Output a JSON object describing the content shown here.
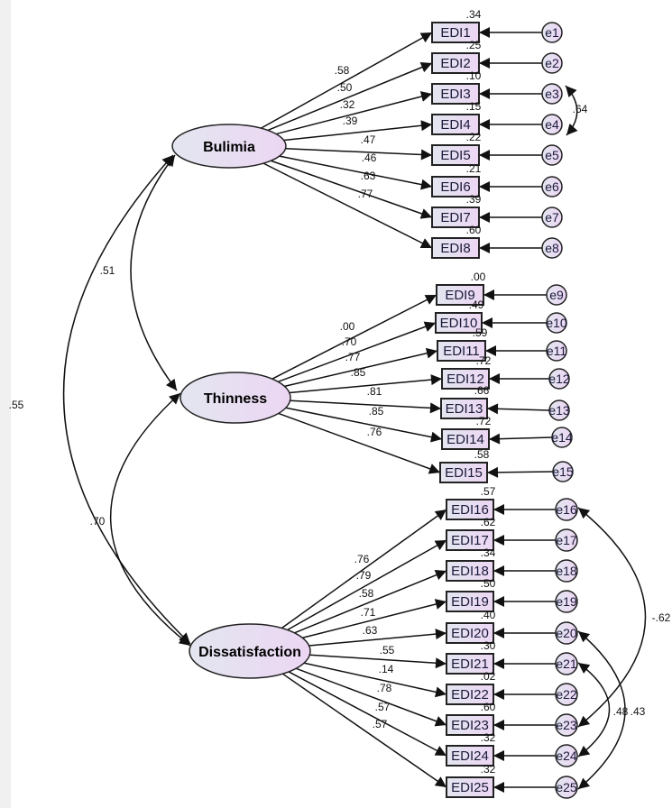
{
  "diagram": {
    "type": "sem-path-diagram",
    "colors": {
      "box_fill_start": "#e3e6f0",
      "box_fill_end": "#ecd6f3",
      "line": "#111111"
    },
    "latents": [
      {
        "name": "Bulimia"
      },
      {
        "name": "Thinness"
      },
      {
        "name": "Dissatisfaction"
      }
    ],
    "indicators": [
      {
        "label": "EDI1",
        "factor": "Bulimia",
        "loading": ".58",
        "r2": ".34",
        "error": "e1"
      },
      {
        "label": "EDI2",
        "factor": "Bulimia",
        "loading": ".50",
        "r2": ".25",
        "error": "e2"
      },
      {
        "label": "EDI3",
        "factor": "Bulimia",
        "loading": ".32",
        "r2": ".10",
        "error": "e3"
      },
      {
        "label": "EDI4",
        "factor": "Bulimia",
        "loading": ".39",
        "r2": ".15",
        "error": "e4"
      },
      {
        "label": "EDI5",
        "factor": "Bulimia",
        "loading": ".47",
        "r2": ".22",
        "error": "e5"
      },
      {
        "label": "EDI6",
        "factor": "Bulimia",
        "loading": ".46",
        "r2": ".21",
        "error": "e6"
      },
      {
        "label": "EDI7",
        "factor": "Bulimia",
        "loading": ".63",
        "r2": ".39",
        "error": "e7"
      },
      {
        "label": "EDI8",
        "factor": "Bulimia",
        "loading": ".77",
        "r2": ".60",
        "error": "e8"
      },
      {
        "label": "EDI9",
        "factor": "Thinness",
        "loading": ".00",
        "r2": ".00",
        "error": "e9"
      },
      {
        "label": "EDI10",
        "factor": "Thinness",
        "loading": ".70",
        "r2": ".49",
        "error": "e10"
      },
      {
        "label": "EDI11",
        "factor": "Thinness",
        "loading": ".77",
        "r2": ".59",
        "error": "e11"
      },
      {
        "label": "EDI12",
        "factor": "Thinness",
        "loading": ".85",
        "r2": ".72",
        "error": "e12"
      },
      {
        "label": "EDI13",
        "factor": "Thinness",
        "loading": ".81",
        "r2": ".66",
        "error": "e13"
      },
      {
        "label": "EDI14",
        "factor": "Thinness",
        "loading": ".85",
        "r2": ".72",
        "error": "e14"
      },
      {
        "label": "EDI15",
        "factor": "Thinness",
        "loading": ".76",
        "r2": ".58",
        "error": "e15"
      },
      {
        "label": "EDI16",
        "factor": "Dissatisfaction",
        "loading": ".76",
        "r2": ".57",
        "error": "e16"
      },
      {
        "label": "EDI17",
        "factor": "Dissatisfaction",
        "loading": ".79",
        "r2": ".62",
        "error": "e17"
      },
      {
        "label": "EDI18",
        "factor": "Dissatisfaction",
        "loading": ".58",
        "r2": ".34",
        "error": "e18"
      },
      {
        "label": "EDI19",
        "factor": "Dissatisfaction",
        "loading": ".71",
        "r2": ".50",
        "error": "e19"
      },
      {
        "label": "EDI20",
        "factor": "Dissatisfaction",
        "loading": ".63",
        "r2": ".40",
        "error": "e20"
      },
      {
        "label": "EDI21",
        "factor": "Dissatisfaction",
        "loading": ".55",
        "r2": ".30",
        "error": "e21"
      },
      {
        "label": "EDI22",
        "factor": "Dissatisfaction",
        "loading": ".14",
        "r2": ".02",
        "error": "e22"
      },
      {
        "label": "EDI23",
        "factor": "Dissatisfaction",
        "loading": ".78",
        "r2": ".60",
        "error": "e23"
      },
      {
        "label": "EDI24",
        "factor": "Dissatisfaction",
        "loading": ".57",
        "r2": ".32",
        "error": "e24"
      },
      {
        "label": "EDI25",
        "factor": "Dissatisfaction",
        "loading": ".57",
        "r2": ".32",
        "error": "e25"
      }
    ],
    "latent_correlations": [
      {
        "from": "Bulimia",
        "to": "Thinness",
        "value": ".51"
      },
      {
        "from": "Bulimia",
        "to": "Dissatisfaction",
        "value": ".55"
      },
      {
        "from": "Thinness",
        "to": "Dissatisfaction",
        "value": ".70"
      }
    ],
    "error_correlations": [
      {
        "from": "e3",
        "to": "e4",
        "value": ".64"
      },
      {
        "from": "e16",
        "to": "e23",
        "value": "-.62"
      },
      {
        "from": "e21",
        "to": "e24",
        "value": ".48"
      },
      {
        "from": "e20",
        "to": "e25",
        "value": ".43"
      }
    ]
  }
}
